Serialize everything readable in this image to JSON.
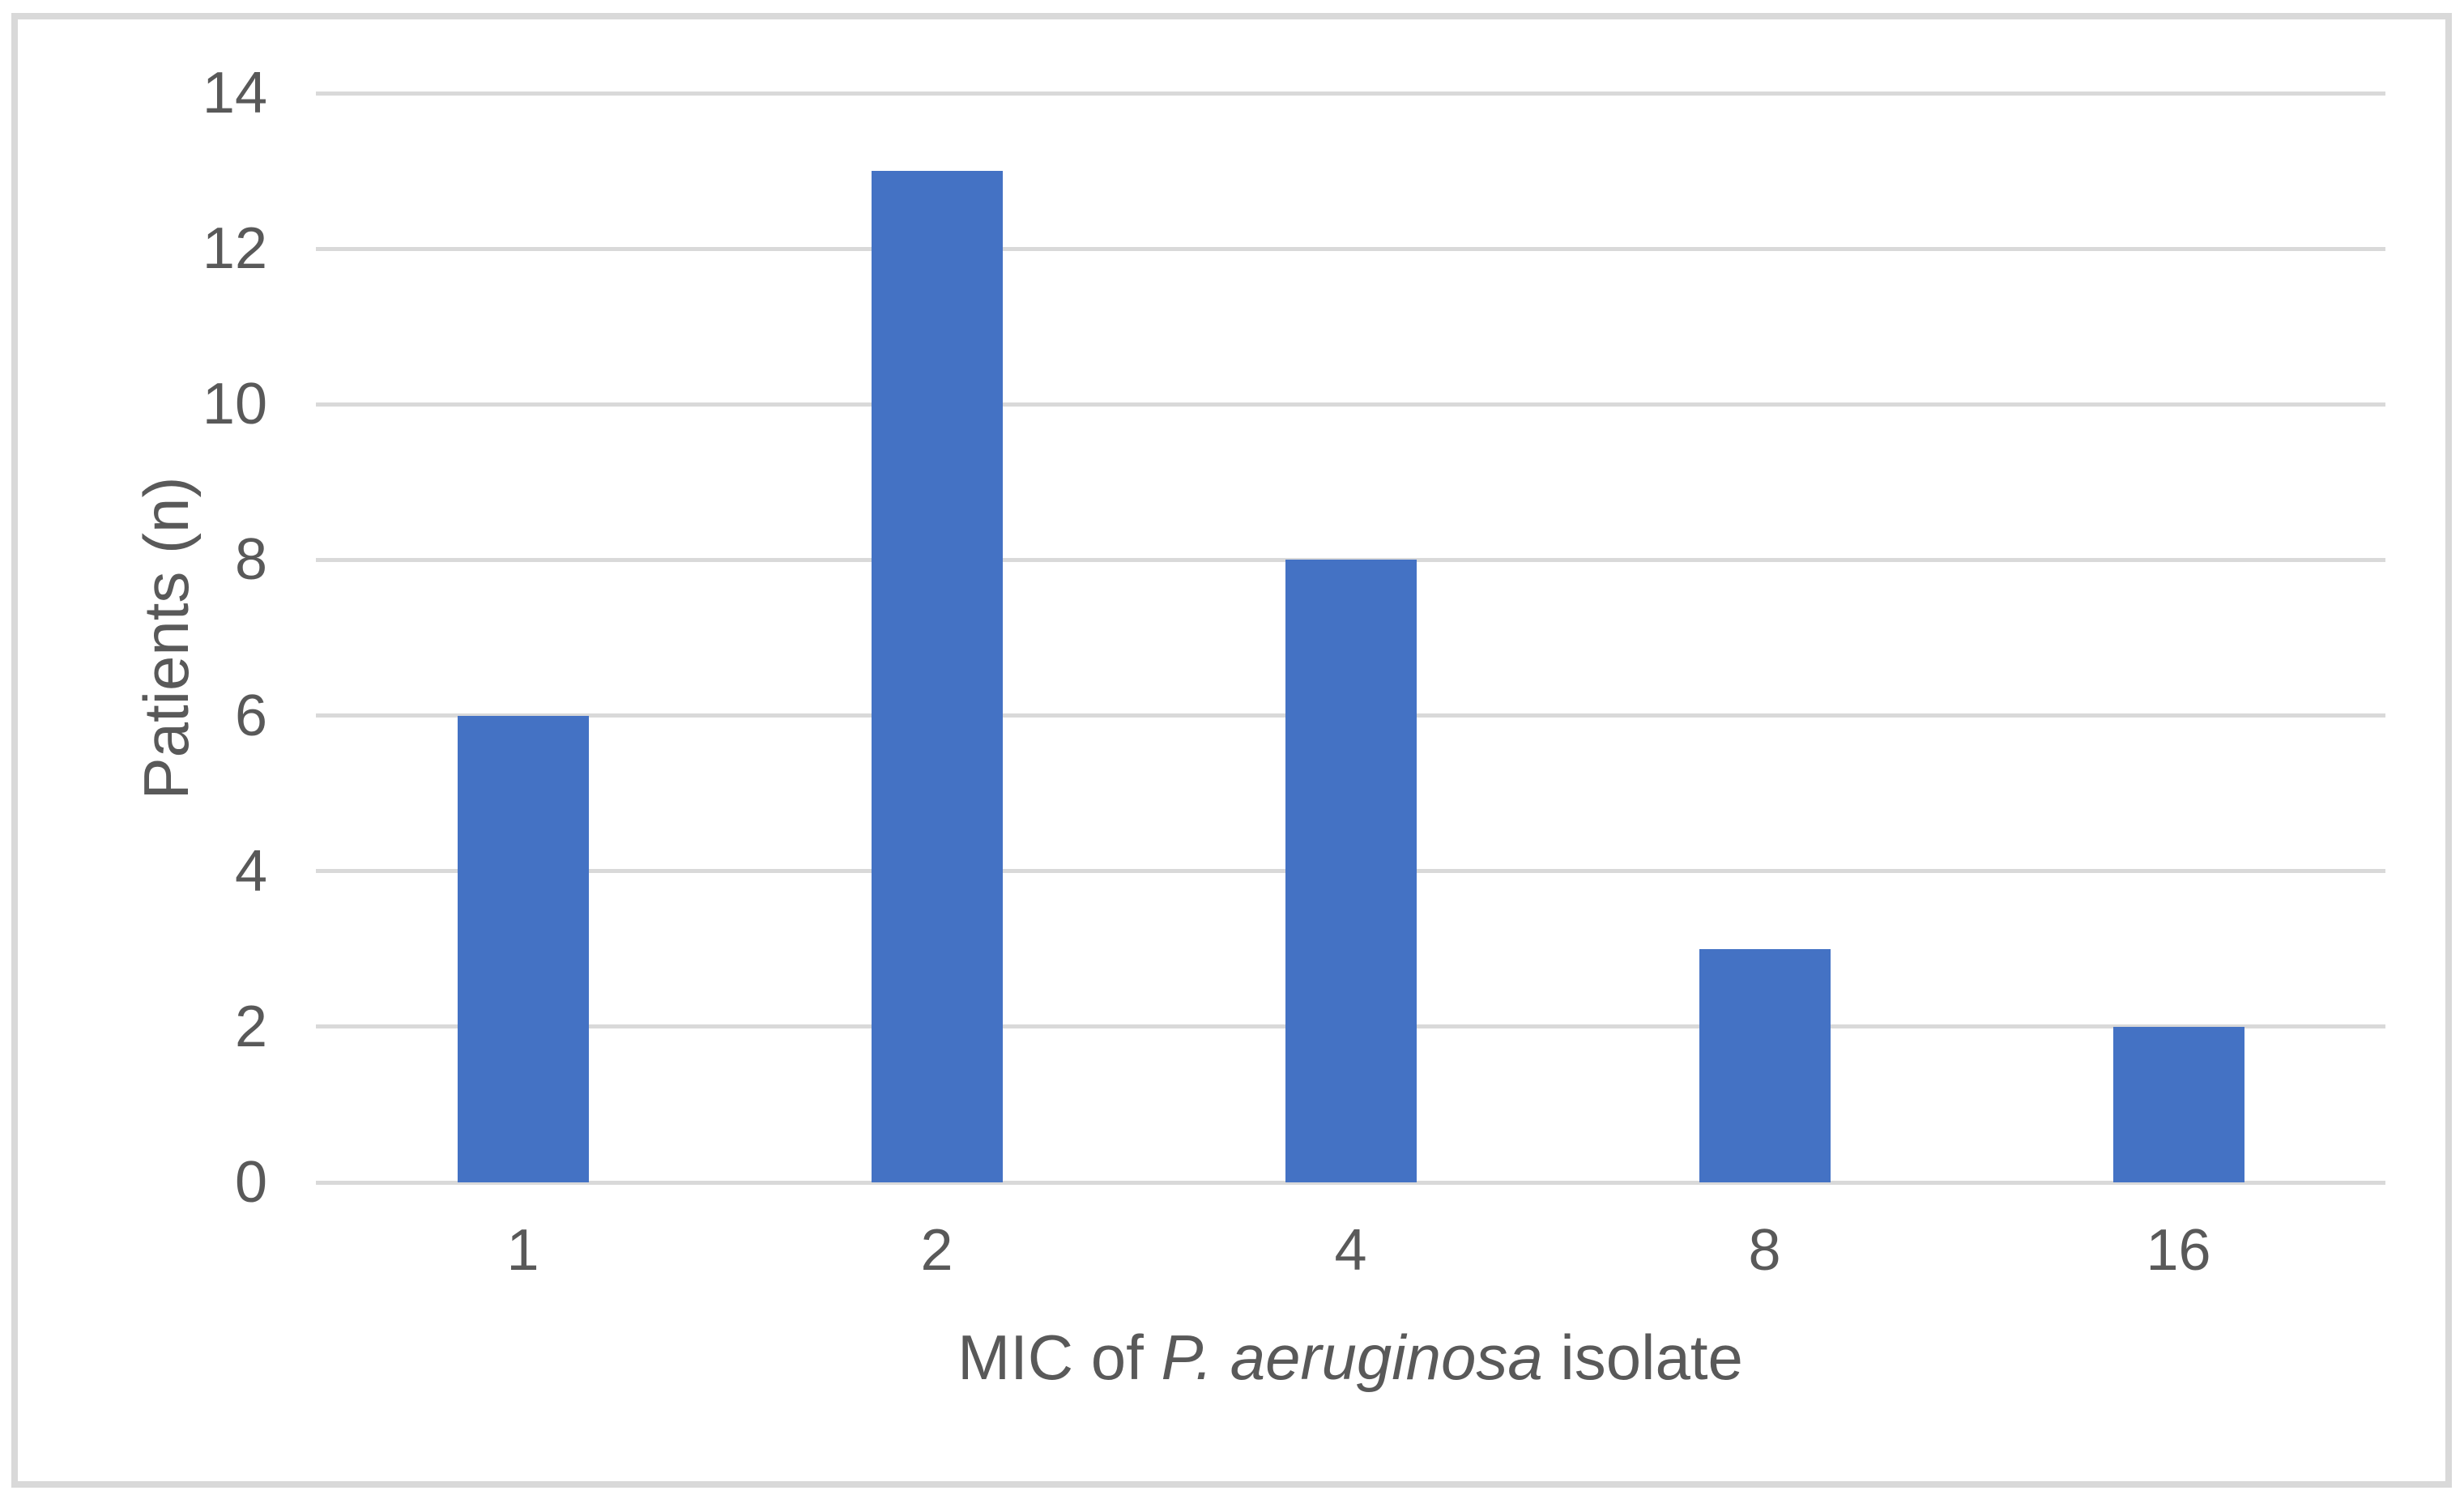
{
  "chart_data": {
    "type": "bar",
    "title": "",
    "categories": [
      "1",
      "2",
      "4",
      "8",
      "16"
    ],
    "values": [
      6,
      13,
      8,
      3,
      2
    ],
    "series_name": "Patients",
    "xlabel": "MIC of P. aeruginosa isolate",
    "xlabel_parts": [
      {
        "text": "MIC of ",
        "italic": false
      },
      {
        "text": "P. aeruginosa",
        "italic": true
      },
      {
        "text": " isolate",
        "italic": false
      }
    ],
    "ylabel": "Patients (n)",
    "ylim": [
      0,
      14
    ],
    "ytick_step": 2,
    "yticks": [
      "0",
      "2",
      "4",
      "6",
      "8",
      "10",
      "12",
      "14"
    ],
    "grid": true,
    "gridlines": "horizontal",
    "legend_position": "none",
    "colors": {
      "bar": "#4472C4",
      "gridline": "#D9D9D9",
      "frame_border": "#D9D9D9",
      "axis_text": "#595959",
      "background": "#FFFFFF"
    }
  }
}
